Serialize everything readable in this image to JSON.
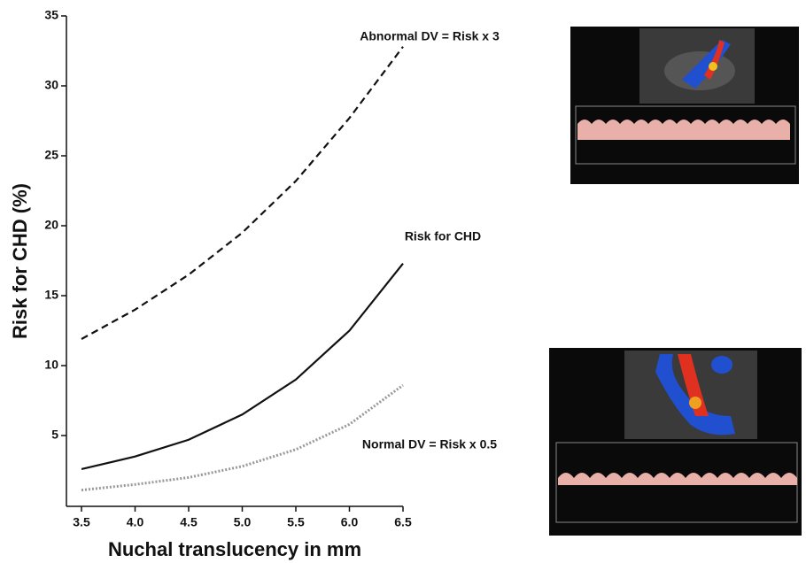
{
  "chart_data": {
    "type": "line",
    "x_label": "Nuchal translucency in mm",
    "y_label": "Risk for CHD (%)",
    "x": [
      3.5,
      4.0,
      4.5,
      5.0,
      5.5,
      6.0,
      6.5
    ],
    "series": [
      {
        "name": "Abnormal DV = Risk x 3",
        "color": "#111111",
        "dash": "dashed",
        "values": [
          11.9,
          14.0,
          16.5,
          19.5,
          23.2,
          27.7,
          32.8
        ]
      },
      {
        "name": "Risk for CHD",
        "color": "#111111",
        "dash": "solid",
        "values": [
          2.6,
          3.5,
          4.7,
          6.5,
          9.0,
          12.5,
          17.3
        ]
      },
      {
        "name": "Normal DV = Risk x 0.5",
        "color": "#999999",
        "dash": "dotted",
        "values": [
          1.1,
          1.5,
          2.0,
          2.8,
          4.0,
          5.8,
          8.6
        ]
      }
    ],
    "xlim": [
      3.5,
      6.5
    ],
    "xticks": [
      3.5,
      {
        "value": 4,
        "label": "4.0"
      },
      4.5,
      {
        "value": 5,
        "label": "5.0"
      },
      5.5,
      {
        "value": 6,
        "label": "6.0"
      },
      6.5
    ],
    "ylim": [
      0,
      35
    ],
    "yticks": [
      5,
      10,
      15,
      20,
      25,
      30,
      35
    ],
    "grid": false
  }
}
